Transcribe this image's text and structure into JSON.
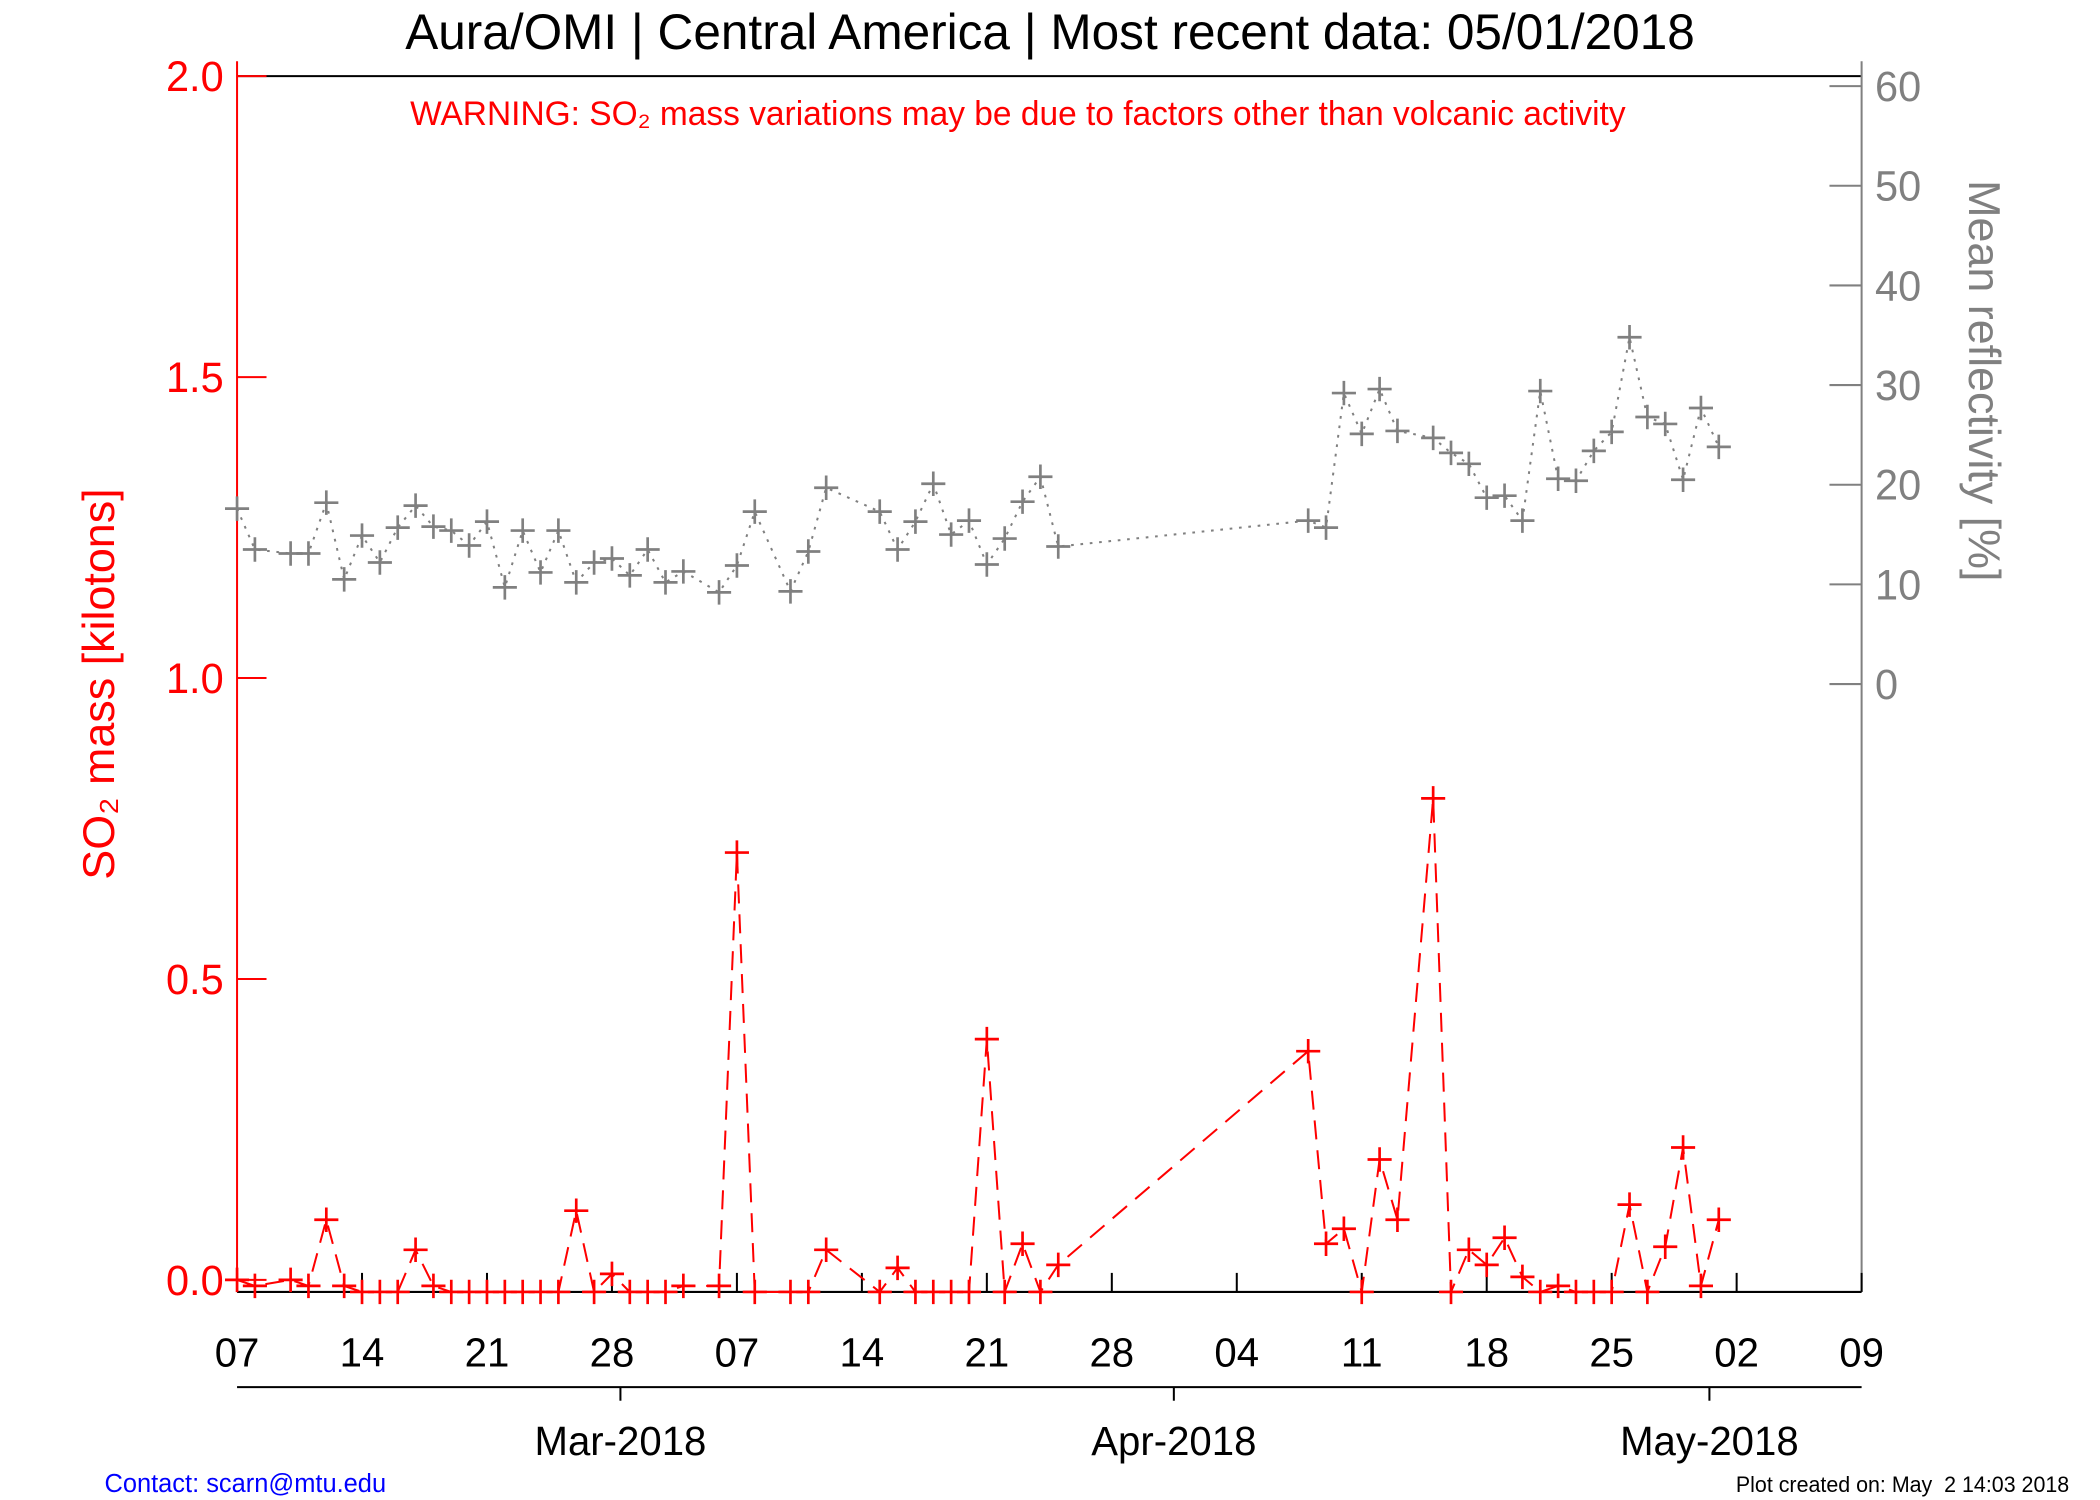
{
  "chart_data": {
    "type": "line",
    "title": "Aura/OMI | Central America | Most recent data: 05/01/2018",
    "annotation": "WARNING: SO₂ mass variations may be due to factors other than volcanic activity",
    "y_label": "SO₂ mass [kilotons]",
    "y2_label": "Mean reflectivity [%]",
    "footer_left": "Contact: scarn@mtu.edu",
    "footer_right": "Plot created on: May  2 14:03 2018",
    "x": [
      "2018-02-07",
      "2018-02-08",
      "2018-02-10",
      "2018-02-11",
      "2018-02-12",
      "2018-02-13",
      "2018-02-14",
      "2018-02-15",
      "2018-02-16",
      "2018-02-17",
      "2018-02-18",
      "2018-02-19",
      "2018-02-20",
      "2018-02-21",
      "2018-02-22",
      "2018-02-23",
      "2018-02-24",
      "2018-02-25",
      "2018-02-26",
      "2018-02-27",
      "2018-02-28",
      "2018-03-01",
      "2018-03-02",
      "2018-03-03",
      "2018-03-04",
      "2018-03-06",
      "2018-03-07",
      "2018-03-08",
      "2018-03-10",
      "2018-03-11",
      "2018-03-12",
      "2018-03-15",
      "2018-03-16",
      "2018-03-17",
      "2018-03-18",
      "2018-03-19",
      "2018-03-20",
      "2018-03-21",
      "2018-03-22",
      "2018-03-23",
      "2018-03-24",
      "2018-03-25",
      "2018-04-08",
      "2018-04-09",
      "2018-04-10",
      "2018-04-11",
      "2018-04-12",
      "2018-04-13",
      "2018-04-15",
      "2018-04-16",
      "2018-04-17",
      "2018-04-18",
      "2018-04-19",
      "2018-04-20",
      "2018-04-21",
      "2018-04-22",
      "2018-04-23",
      "2018-04-24",
      "2018-04-25",
      "2018-04-26",
      "2018-04-27",
      "2018-04-28",
      "2018-04-29",
      "2018-04-30",
      "2018-05-01"
    ],
    "series": [
      {
        "name": "SO₂ mass",
        "color": "#ff0000",
        "line_style": "dashed",
        "values": [
          0,
          -0.01,
          0,
          -0.01,
          0.1,
          -0.01,
          -0.02,
          -0.02,
          -0.02,
          0.05,
          -0.01,
          -0.02,
          -0.02,
          -0.02,
          -0.02,
          -0.02,
          -0.02,
          -0.02,
          0.115,
          -0.02,
          0.01,
          -0.02,
          -0.02,
          -0.02,
          -0.01,
          -0.01,
          0.71,
          -0.02,
          -0.02,
          -0.02,
          0.05,
          -0.02,
          0.02,
          -0.02,
          -0.02,
          -0.02,
          -0.02,
          0.4,
          -0.02,
          0.06,
          -0.02,
          0.025,
          0.38,
          0.06,
          0.085,
          -0.02,
          0.2,
          0.1,
          0.8,
          -0.02,
          0.05,
          0.025,
          0.07,
          0.005,
          -0.02,
          -0.01,
          -0.02,
          -0.02,
          -0.02,
          0.125,
          -0.02,
          0.055,
          0.22,
          -0.01,
          0.1
        ]
      },
      {
        "name": "Mean reflectivity",
        "color": "#808080",
        "line_style": "dotted",
        "axis": "y2",
        "values": [
          17.6,
          13.5,
          13.1,
          13.1,
          18.2,
          10.5,
          14.9,
          12.2,
          15.7,
          17.9,
          15.8,
          15.4,
          13.9,
          16.3,
          9.7,
          15.4,
          11.2,
          15.4,
          10.2,
          12.2,
          12.6,
          10.9,
          13.5,
          10.2,
          11.3,
          9.2,
          11.9,
          17.3,
          9.3,
          13.3,
          19.7,
          17.3,
          13.5,
          16.3,
          20.1,
          15.0,
          16.4,
          12.0,
          14.6,
          18.3,
          20.8,
          13.8,
          16.4,
          15.7,
          29.2,
          25.1,
          29.6,
          25.4,
          24.7,
          23.2,
          22.1,
          18.7,
          18.9,
          16.4,
          29.4,
          20.6,
          20.4,
          23.4,
          25.3,
          34.8,
          26.8,
          26.1,
          20.5,
          27.7,
          23.8
        ]
      }
    ],
    "xlim": [
      "2018-02-07",
      "2018-05-09"
    ],
    "xticks": [
      {
        "value": "2018-02-07",
        "label": "07"
      },
      {
        "value": "2018-02-14",
        "label": "14"
      },
      {
        "value": "2018-02-21",
        "label": "21"
      },
      {
        "value": "2018-02-28",
        "label": "28"
      },
      {
        "value": "2018-03-07",
        "label": "07"
      },
      {
        "value": "2018-03-14",
        "label": "14"
      },
      {
        "value": "2018-03-21",
        "label": "21"
      },
      {
        "value": "2018-03-28",
        "label": "28"
      },
      {
        "value": "2018-04-04",
        "label": "04"
      },
      {
        "value": "2018-04-11",
        "label": "11"
      },
      {
        "value": "2018-04-18",
        "label": "18"
      },
      {
        "value": "2018-04-25",
        "label": "25"
      },
      {
        "value": "2018-05-02",
        "label": "02"
      },
      {
        "value": "2018-05-09",
        "label": "09"
      }
    ],
    "x2ticks": [
      {
        "value": "2018-03-01",
        "label": "Mar-2018"
      },
      {
        "value": "2018-04-01",
        "label": "Apr-2018"
      },
      {
        "value": "2018-05-01",
        "label": "May-2018"
      }
    ],
    "ylim": [
      -0.02,
      2.0
    ],
    "yticks": [
      {
        "value": 0,
        "label": "0.0"
      },
      0.5,
      {
        "value": 1,
        "label": "1.0"
      },
      1.5,
      {
        "value": 2,
        "label": "2.0"
      }
    ],
    "y2lim": [
      -61,
      61
    ],
    "y2ticks": [
      0,
      10,
      20,
      30,
      40,
      50,
      60
    ]
  }
}
